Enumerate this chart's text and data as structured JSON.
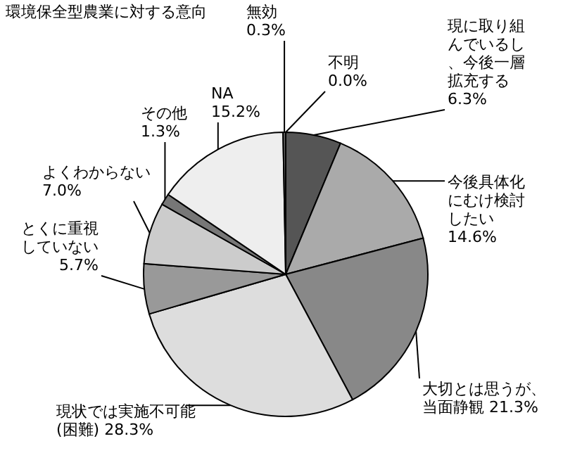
{
  "chart_data": {
    "type": "pie",
    "title": "環境保全型農業に対する意向",
    "categories": [
      "現に取り組んでいるし、今後一層拡充する",
      "今後具体化にむけ検討したい",
      "大切とは思うが、当面静観",
      "現状では実施不可能(困難)",
      "とくに重視していない",
      "よくわからない",
      "その他",
      "NA",
      "無効",
      "不明"
    ],
    "values": [
      6.3,
      14.6,
      21.3,
      28.3,
      5.7,
      7.0,
      1.3,
      15.2,
      0.3,
      0.0
    ],
    "value_labels": [
      "6.3%",
      "14.6%",
      "21.3%",
      "28.3%",
      "5.7%",
      "7.0%",
      "1.3%",
      "15.2%",
      "0.3%",
      "0.0%"
    ],
    "colors": [
      "#555555",
      "#aaaaaa",
      "#888888",
      "#dddddd",
      "#999999",
      "#cccccc",
      "#777777",
      "#eeeeee",
      "#666666",
      "#ffffff"
    ],
    "legend": false
  }
}
